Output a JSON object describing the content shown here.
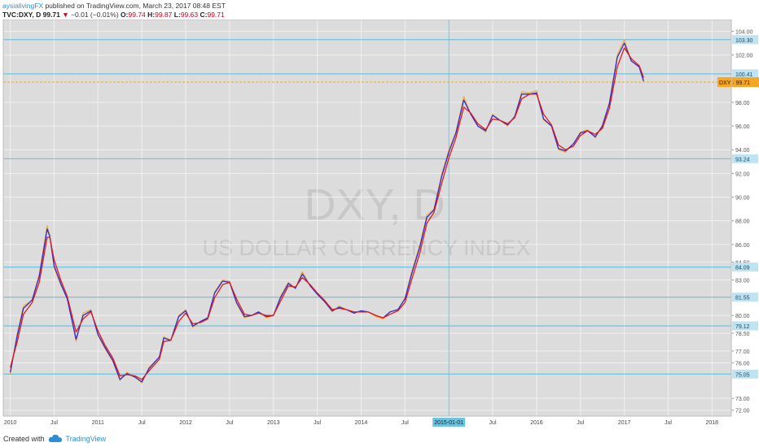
{
  "header": {
    "author": "aysialivingFX",
    "published": " published on TradingView.com, March 23, 2017 08:48 EST",
    "symbol": "TVC:DXY, D",
    "last": "99.71",
    "arrow": "▼",
    "change": "−0.01 (−0.01%)",
    "o_label": "O:",
    "o": "99.74",
    "h_label": "H:",
    "h": "99.87",
    "l_label": "L:",
    "l": "99.63",
    "c_label": "C:",
    "c": "99.71"
  },
  "footer": {
    "created": "Created with",
    "brand": "TradingView"
  },
  "colors": {
    "bg": "#dcdcdc",
    "grid": "#f0f0f0",
    "price": "#f5a623",
    "ma_fast": "#2b2bd6",
    "ma_slow": "#e21b1b",
    "hline": "#6ec3e0",
    "level": "#f5a623",
    "watermark": "#c8c8c8"
  },
  "chart_data": {
    "type": "line",
    "title": "DXY, D",
    "subtitle": "US DOLLAR CURRENCY INDEX",
    "xlabel": "",
    "ylabel": "",
    "ylim": [
      71.5,
      105
    ],
    "yticks": [
      "104.00",
      "102.00",
      "98.00",
      "96.00",
      "94.00",
      "92.00",
      "90.00",
      "88.00",
      "86.00",
      "84.50",
      "83.00",
      "80.00",
      "78.50",
      "77.00",
      "76.00",
      "73.00",
      "72.00"
    ],
    "xticks": [
      "2010",
      "Jul",
      "2011",
      "Jul",
      "2012",
      "Jul",
      "2013",
      "Jul",
      "2014",
      "Jul",
      "2015-01-01",
      "Jul",
      "2016",
      "Jul",
      "2017",
      "Jul",
      "2018"
    ],
    "vline_label": "2015-01-01",
    "grid": true,
    "horizontal_lines": [
      {
        "value": 103.3,
        "label": "103.30"
      },
      {
        "value": 100.41,
        "label": "100.41"
      },
      {
        "value": 93.24,
        "label": "93.24"
      },
      {
        "value": 84.09,
        "label": "84.09"
      },
      {
        "value": 81.55,
        "label": "81.55"
      },
      {
        "value": 79.12,
        "label": "79.12"
      },
      {
        "value": 75.05,
        "label": "75.05"
      }
    ],
    "price_level": {
      "value": 99.71,
      "label": "DXY · 99.71"
    },
    "series": [
      {
        "role": "price",
        "x": [
          2010.0,
          2010.08,
          2010.15,
          2010.25,
          2010.33,
          2010.42,
          2010.45,
          2010.5,
          2010.58,
          2010.65,
          2010.75,
          2010.83,
          2010.92,
          2011.0,
          2011.08,
          2011.17,
          2011.25,
          2011.33,
          2011.42,
          2011.5,
          2011.58,
          2011.7,
          2011.75,
          2011.83,
          2011.92,
          2012.0,
          2012.08,
          2012.17,
          2012.25,
          2012.33,
          2012.42,
          2012.5,
          2012.58,
          2012.67,
          2012.75,
          2012.83,
          2012.92,
          2013.0,
          2013.08,
          2013.17,
          2013.25,
          2013.33,
          2013.42,
          2013.5,
          2013.58,
          2013.67,
          2013.75,
          2013.83,
          2013.92,
          2014.0,
          2014.08,
          2014.17,
          2014.25,
          2014.33,
          2014.42,
          2014.5,
          2014.58,
          2014.67,
          2014.75,
          2014.83,
          2014.92,
          2015.0,
          2015.08,
          2015.17,
          2015.25,
          2015.33,
          2015.42,
          2015.5,
          2015.58,
          2015.67,
          2015.75,
          2015.83,
          2015.92,
          2016.0,
          2016.08,
          2016.17,
          2016.25,
          2016.33,
          2016.42,
          2016.5,
          2016.58,
          2016.67,
          2016.75,
          2016.83,
          2016.92,
          2017.0,
          2017.08,
          2017.17,
          2017.22
        ],
        "values": [
          75.0,
          78.5,
          80.8,
          81.3,
          83.5,
          87.6,
          86.8,
          84.0,
          82.5,
          81.5,
          77.8,
          80.2,
          80.5,
          78.3,
          77.2,
          76.1,
          74.5,
          75.2,
          74.8,
          74.3,
          75.6,
          76.5,
          78.2,
          77.9,
          80.0,
          80.5,
          79.0,
          79.5,
          79.8,
          82.0,
          83.0,
          82.9,
          81.0,
          79.8,
          80.0,
          80.3,
          79.8,
          80.0,
          81.6,
          82.8,
          82.3,
          83.7,
          82.5,
          81.8,
          81.2,
          80.3,
          80.8,
          80.5,
          80.2,
          80.4,
          80.3,
          79.9,
          79.7,
          80.3,
          80.5,
          81.5,
          83.8,
          86.0,
          88.5,
          89.0,
          92.0,
          94.0,
          95.5,
          98.5,
          97.0,
          96.0,
          95.5,
          97.0,
          96.5,
          96.0,
          96.8,
          98.9,
          98.8,
          99.0,
          96.5,
          96.0,
          94.0,
          93.8,
          94.5,
          95.5,
          95.7,
          95.0,
          96.1,
          98.0,
          102.0,
          103.3,
          101.5,
          101.0,
          99.71
        ]
      },
      {
        "role": "ma_fast",
        "x": [
          2010.0,
          2010.08,
          2010.15,
          2010.25,
          2010.33,
          2010.42,
          2010.45,
          2010.5,
          2010.58,
          2010.65,
          2010.75,
          2010.83,
          2010.92,
          2011.0,
          2011.08,
          2011.17,
          2011.25,
          2011.33,
          2011.42,
          2011.5,
          2011.58,
          2011.7,
          2011.75,
          2011.83,
          2011.92,
          2012.0,
          2012.08,
          2012.17,
          2012.25,
          2012.33,
          2012.42,
          2012.5,
          2012.58,
          2012.67,
          2012.75,
          2012.83,
          2012.92,
          2013.0,
          2013.08,
          2013.17,
          2013.25,
          2013.33,
          2013.42,
          2013.5,
          2013.58,
          2013.67,
          2013.75,
          2013.83,
          2013.92,
          2014.0,
          2014.08,
          2014.17,
          2014.25,
          2014.33,
          2014.42,
          2014.5,
          2014.58,
          2014.67,
          2014.75,
          2014.83,
          2014.92,
          2015.0,
          2015.08,
          2015.17,
          2015.25,
          2015.33,
          2015.42,
          2015.5,
          2015.58,
          2015.67,
          2015.75,
          2015.83,
          2015.92,
          2016.0,
          2016.08,
          2016.17,
          2016.25,
          2016.33,
          2016.42,
          2016.5,
          2016.58,
          2016.67,
          2016.75,
          2016.83,
          2016.92,
          2017.0,
          2017.08,
          2017.17,
          2017.22
        ],
        "values": [
          75.2,
          78.3,
          80.6,
          81.3,
          83.3,
          87.3,
          86.7,
          84.2,
          82.6,
          81.4,
          78.0,
          80.0,
          80.4,
          78.4,
          77.3,
          76.2,
          74.6,
          75.1,
          74.8,
          74.4,
          75.5,
          76.5,
          78.1,
          77.9,
          79.9,
          80.4,
          79.1,
          79.5,
          79.8,
          81.9,
          82.9,
          82.8,
          81.1,
          79.9,
          80.0,
          80.3,
          79.9,
          80.0,
          81.5,
          82.7,
          82.3,
          83.5,
          82.5,
          81.8,
          81.2,
          80.4,
          80.7,
          80.5,
          80.2,
          80.4,
          80.3,
          80.0,
          79.8,
          80.3,
          80.5,
          81.4,
          83.6,
          85.8,
          88.3,
          88.9,
          91.8,
          93.8,
          95.4,
          98.2,
          97.0,
          96.0,
          95.6,
          96.9,
          96.5,
          96.1,
          96.8,
          98.7,
          98.7,
          98.8,
          96.6,
          96.0,
          94.1,
          93.9,
          94.5,
          95.4,
          95.6,
          95.1,
          96.0,
          97.9,
          101.8,
          103.0,
          101.5,
          101.0,
          99.8
        ]
      },
      {
        "role": "ma_slow",
        "x": [
          2010.0,
          2010.08,
          2010.15,
          2010.25,
          2010.33,
          2010.42,
          2010.45,
          2010.5,
          2010.58,
          2010.65,
          2010.75,
          2010.83,
          2010.92,
          2011.0,
          2011.08,
          2011.17,
          2011.25,
          2011.33,
          2011.42,
          2011.5,
          2011.58,
          2011.7,
          2011.75,
          2011.83,
          2011.92,
          2012.0,
          2012.08,
          2012.17,
          2012.25,
          2012.33,
          2012.42,
          2012.5,
          2012.58,
          2012.67,
          2012.75,
          2012.83,
          2012.92,
          2013.0,
          2013.08,
          2013.17,
          2013.25,
          2013.33,
          2013.42,
          2013.5,
          2013.58,
          2013.67,
          2013.75,
          2013.83,
          2013.92,
          2014.0,
          2014.08,
          2014.17,
          2014.25,
          2014.33,
          2014.42,
          2014.5,
          2014.58,
          2014.67,
          2014.75,
          2014.83,
          2014.92,
          2015.0,
          2015.08,
          2015.17,
          2015.25,
          2015.33,
          2015.42,
          2015.5,
          2015.58,
          2015.67,
          2015.75,
          2015.83,
          2015.92,
          2016.0,
          2016.08,
          2016.17,
          2016.25,
          2016.33,
          2016.42,
          2016.5,
          2016.58,
          2016.67,
          2016.75,
          2016.83,
          2016.92,
          2017.0,
          2017.08,
          2017.17,
          2017.22
        ],
        "values": [
          75.6,
          77.8,
          80.1,
          81.1,
          82.8,
          86.6,
          86.6,
          84.7,
          82.9,
          81.6,
          78.6,
          79.7,
          80.3,
          78.7,
          77.5,
          76.4,
          74.9,
          75.0,
          74.9,
          74.6,
          75.3,
          76.3,
          77.8,
          77.9,
          79.5,
          80.2,
          79.3,
          79.4,
          79.7,
          81.5,
          82.6,
          82.8,
          81.4,
          80.1,
          80.0,
          80.2,
          80.0,
          80.0,
          81.2,
          82.5,
          82.4,
          83.2,
          82.6,
          81.9,
          81.3,
          80.5,
          80.6,
          80.5,
          80.3,
          80.3,
          80.3,
          80.0,
          79.8,
          80.1,
          80.4,
          81.1,
          83.1,
          85.3,
          87.8,
          88.7,
          91.2,
          93.3,
          95.0,
          97.6,
          97.1,
          96.2,
          95.7,
          96.6,
          96.5,
          96.2,
          96.7,
          98.3,
          98.7,
          98.7,
          97.0,
          96.1,
          94.4,
          94.0,
          94.3,
          95.2,
          95.6,
          95.3,
          95.8,
          97.5,
          101.0,
          102.6,
          101.7,
          101.1,
          100.1
        ]
      }
    ]
  }
}
